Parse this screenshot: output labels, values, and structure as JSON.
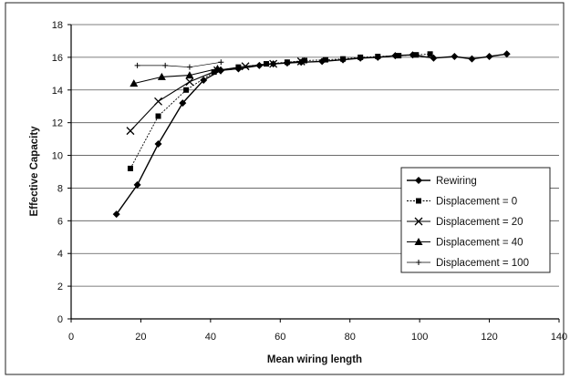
{
  "chart_data": {
    "type": "line",
    "title": "",
    "xlabel": "Mean wiring length",
    "ylabel": "Effective Capacity",
    "xlim": [
      0,
      140
    ],
    "ylim": [
      0,
      18
    ],
    "xticks": [
      "0",
      "20",
      "40",
      "60",
      "80",
      "100",
      "120",
      "140"
    ],
    "yticks": [
      "0",
      "2",
      "4",
      "6",
      "8",
      "10",
      "12",
      "14",
      "16",
      "18"
    ],
    "grid": "horizontal",
    "legend_position": "right",
    "series": [
      {
        "name": "Rewiring",
        "marker": "diamond",
        "color": "#000000",
        "x": [
          13,
          19,
          25,
          32,
          38,
          43,
          48,
          54,
          58,
          62,
          66,
          72,
          78,
          83,
          88,
          93,
          98,
          104,
          110,
          115,
          120,
          125
        ],
        "y": [
          6.4,
          8.2,
          10.7,
          13.2,
          14.6,
          15.2,
          15.3,
          15.5,
          15.6,
          15.65,
          15.7,
          15.75,
          15.85,
          15.95,
          16.0,
          16.1,
          16.15,
          15.95,
          16.05,
          15.9,
          16.05,
          16.2
        ]
      },
      {
        "name": "Displacement = 0",
        "marker": "square",
        "color": "#000000",
        "x": [
          17,
          25,
          33,
          41,
          48,
          56,
          62,
          67,
          73,
          78,
          83,
          88,
          94,
          99,
          103
        ],
        "y": [
          9.2,
          12.4,
          14.0,
          15.1,
          15.4,
          15.6,
          15.7,
          15.8,
          15.85,
          15.9,
          16.0,
          16.05,
          16.1,
          16.15,
          16.2
        ]
      },
      {
        "name": "Displacement = 20",
        "marker": "x",
        "color": "#000000",
        "x": [
          17,
          25,
          34,
          42,
          50,
          58,
          66
        ],
        "y": [
          11.5,
          13.3,
          14.5,
          15.2,
          15.45,
          15.6,
          15.75
        ]
      },
      {
        "name": "Displacement = 40",
        "marker": "triangle",
        "color": "#000000",
        "x": [
          18,
          26,
          34,
          42
        ],
        "y": [
          14.4,
          14.8,
          14.9,
          15.3
        ]
      },
      {
        "name": "Displacement = 100",
        "marker": "plus",
        "color": "#000000",
        "x": [
          19,
          27,
          34,
          43
        ],
        "y": [
          15.5,
          15.5,
          15.4,
          15.7
        ]
      }
    ]
  }
}
